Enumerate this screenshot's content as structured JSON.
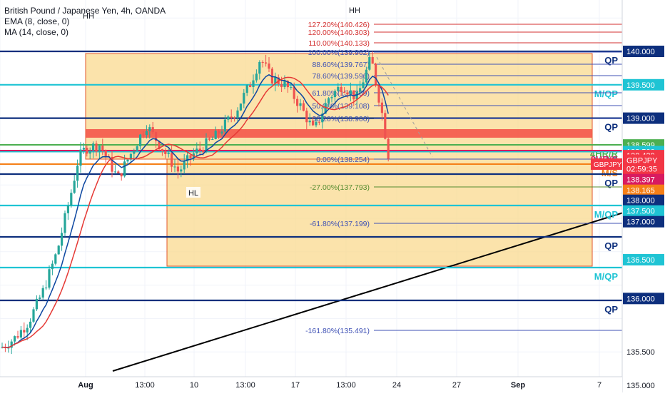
{
  "legend": {
    "title": "British Pound / Japanese Yen, 4h, OANDA",
    "ema": "EMA (8, close, 0)",
    "ma": "MA (14, close, 0)"
  },
  "colors": {
    "grid": "#f0f3fa",
    "zone_fill": "#f9d98f",
    "zone_stroke": "#e0542a",
    "red_band": "#f4574a",
    "navy": "#0d2f7d",
    "cyan": "#1fc4d4",
    "green": "#4caf50",
    "orange": "#f57f17",
    "magenta": "#d81b60",
    "fib": "#3f51b5",
    "candle_up": "#26a69a",
    "candle_down": "#ef5350",
    "ema": "#0d47a1",
    "ma": "#e53935",
    "trend": "#000000"
  },
  "chart_data": {
    "type": "candlestick",
    "symbol": "GBPJPY",
    "y_axis": {
      "min": 134.8,
      "max": 140.8,
      "ticks": [
        135.0,
        135.5,
        136.0,
        136.5,
        137.0,
        137.5,
        138.0,
        138.5,
        139.0,
        139.5,
        140.0,
        140.5
      ]
    },
    "x_ticks": [
      "Aug",
      "13:00",
      "10",
      "13:00",
      "17",
      "13:00",
      "24",
      "27",
      "Sep",
      "7"
    ],
    "price_labels": [
      {
        "text": "140.000",
        "price": 140.0,
        "style": "navy"
      },
      {
        "text": "139.500",
        "price": 139.5,
        "style": "cyan"
      },
      {
        "text": "139.000",
        "price": 139.0,
        "style": "navy"
      },
      {
        "text": "138.599",
        "price": 138.599,
        "style": "green"
      },
      {
        "text": "138.500",
        "price": 138.5,
        "style": "cyan"
      },
      {
        "text": "138.439",
        "price": 138.439,
        "style": "red"
      },
      {
        "text": "GBPJPY",
        "price": 138.37,
        "style": "red"
      },
      {
        "text": "02:59:35",
        "price": 138.245,
        "style": "red"
      },
      {
        "text": "138.397",
        "price": 138.08,
        "style": "magenta"
      },
      {
        "text": "138.165",
        "price": 137.92,
        "style": "orange"
      },
      {
        "text": "138.000",
        "price": 137.77,
        "style": "navy"
      },
      {
        "text": "137.500",
        "price": 137.61,
        "style": "cyan"
      },
      {
        "text": "137.000",
        "price": 137.45,
        "style": "navy"
      },
      {
        "text": "136.500",
        "price": 136.88,
        "style": "cyan"
      },
      {
        "text": "136.000",
        "price": 136.3,
        "style": "navy"
      },
      {
        "text": "135.500",
        "price": 135.5,
        "style": "plain"
      },
      {
        "text": "135.000",
        "price": 135.0,
        "style": "plain"
      }
    ],
    "horizontal_levels": [
      {
        "price": 140.0,
        "label": "QP",
        "style": "navy"
      },
      {
        "price": 139.5,
        "label": "M/QP",
        "style": "cyan"
      },
      {
        "price": 139.0,
        "label": "QP",
        "style": "navy"
      },
      {
        "price": 138.6,
        "label": "4HR/R",
        "style": "green"
      },
      {
        "price": 138.5,
        "label": "M/QP",
        "style": "cyan"
      },
      {
        "price": 138.42,
        "label": "2HR/S",
        "style": "magenta"
      },
      {
        "price": 138.2,
        "label": "M/S",
        "style": "orange"
      },
      {
        "price": 138.02,
        "label": "QP",
        "style": "navy"
      },
      {
        "price": 137.56,
        "label": "M/QP",
        "style": "cyan"
      },
      {
        "price": 137.09,
        "label": "QP",
        "style": "navy"
      },
      {
        "price": 136.53,
        "label": "M/QP",
        "style": "cyan"
      },
      {
        "price": 135.95,
        "label": "QP",
        "style": "navy"
      }
    ],
    "fibonacci": [
      {
        "text": "127.20%(140.426)",
        "price": 140.426
      },
      {
        "text": "120.00%(140.303)",
        "price": 140.303
      },
      {
        "text": "110.00%(140.133)",
        "price": 140.133
      },
      {
        "text": "100.00%(139.962)",
        "price": 139.962
      },
      {
        "text": "88.60%(139.767)",
        "price": 139.767
      },
      {
        "text": "78.60%(139.596)",
        "price": 139.596
      },
      {
        "text": "61.80%(139.309)",
        "price": 139.309
      },
      {
        "text": "50.00%(139.108)",
        "price": 139.108
      },
      {
        "text": "38.20%(138.906)",
        "price": 138.906
      },
      {
        "text": "0.00%(138.254)",
        "price": 138.254
      },
      {
        "text": "-27.00%(137.793)",
        "price": 137.793
      },
      {
        "text": "-61.80%(137.199)",
        "price": 137.199
      },
      {
        "text": "-161.80%(135.491)",
        "price": 135.491
      }
    ],
    "annotations": [
      "HH",
      "HH",
      "HL"
    ]
  }
}
